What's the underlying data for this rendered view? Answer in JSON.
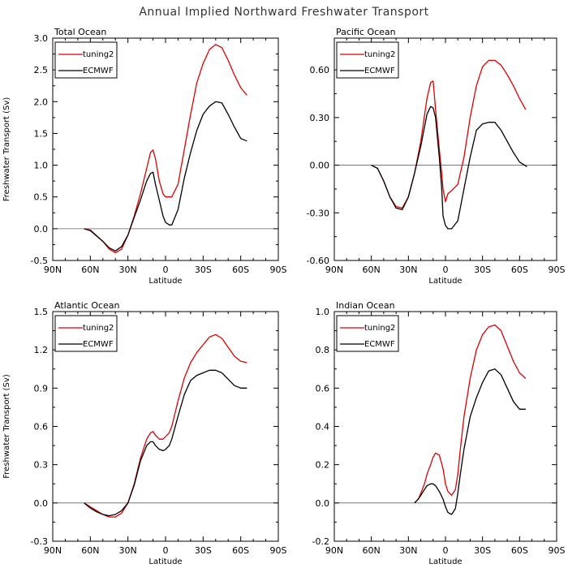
{
  "title": "Annual Implied Northward Freshwater Transport",
  "chart_data": [
    {
      "type": "line",
      "title": "Total Ocean",
      "xlabel": "Latitude",
      "ylabel": "Freshwater Transport (Sv)",
      "xlim": [
        -90,
        90
      ],
      "ylim": [
        -0.5,
        3.0
      ],
      "xticks": [
        -90,
        -60,
        -30,
        0,
        30,
        60,
        90
      ],
      "xtick_labels": [
        "90N",
        "60N",
        "30N",
        "0",
        "30S",
        "60S",
        "90S"
      ],
      "yticks": [
        -0.5,
        0.0,
        0.5,
        1.0,
        1.5,
        2.0,
        2.5,
        3.0
      ],
      "ytick_labels": [
        "-0.5",
        "0.0",
        "0.5",
        "1.0",
        "1.5",
        "2.0",
        "2.5",
        "3.0"
      ],
      "legend": [
        "tuning2",
        "ECMWF"
      ],
      "series": [
        {
          "name": "tuning2",
          "color": "#e00000",
          "x": [
            -65,
            -60,
            -50,
            -45,
            -40,
            -35,
            -30,
            -25,
            -20,
            -15,
            -12,
            -10,
            -8,
            -5,
            -2,
            0,
            3,
            5,
            10,
            15,
            20,
            25,
            30,
            35,
            40,
            45,
            50,
            55,
            60,
            65
          ],
          "y": [
            0.0,
            -0.02,
            -0.2,
            -0.32,
            -0.38,
            -0.32,
            -0.1,
            0.2,
            0.55,
            0.95,
            1.2,
            1.24,
            1.1,
            0.75,
            0.55,
            0.5,
            0.5,
            0.5,
            0.7,
            1.25,
            1.8,
            2.3,
            2.6,
            2.82,
            2.9,
            2.85,
            2.65,
            2.42,
            2.22,
            2.1
          ]
        },
        {
          "name": "ECMWF",
          "color": "#000000",
          "x": [
            -65,
            -60,
            -50,
            -45,
            -40,
            -35,
            -30,
            -25,
            -20,
            -15,
            -12,
            -10,
            -8,
            -5,
            -2,
            0,
            3,
            5,
            10,
            15,
            20,
            25,
            30,
            35,
            40,
            45,
            50,
            55,
            60,
            65
          ],
          "y": [
            0.0,
            -0.03,
            -0.2,
            -0.3,
            -0.35,
            -0.28,
            -0.1,
            0.18,
            0.45,
            0.75,
            0.87,
            0.89,
            0.7,
            0.45,
            0.2,
            0.1,
            0.06,
            0.06,
            0.3,
            0.8,
            1.2,
            1.55,
            1.8,
            1.93,
            2.0,
            1.98,
            1.8,
            1.6,
            1.42,
            1.38
          ]
        }
      ]
    },
    {
      "type": "line",
      "title": "Pacific Ocean",
      "xlabel": "Latitude",
      "ylabel": "",
      "xlim": [
        -90,
        90
      ],
      "ylim": [
        -0.6,
        0.8
      ],
      "xticks": [
        -90,
        -60,
        -30,
        0,
        30,
        60,
        90
      ],
      "xtick_labels": [
        "90N",
        "60N",
        "30N",
        "0",
        "30S",
        "60S",
        "90S"
      ],
      "yticks": [
        -0.6,
        -0.3,
        0.0,
        0.3,
        0.6
      ],
      "ytick_labels": [
        "-0.60",
        "-0.30",
        "0.00",
        "0.30",
        "0.60"
      ],
      "legend": [
        "tuning2",
        "ECMWF"
      ],
      "series": [
        {
          "name": "tuning2",
          "color": "#e00000",
          "x": [
            -60,
            -55,
            -50,
            -45,
            -40,
            -35,
            -30,
            -25,
            -20,
            -15,
            -12,
            -10,
            -8,
            -5,
            -3,
            -2,
            0,
            2,
            5,
            10,
            15,
            20,
            25,
            30,
            35,
            40,
            45,
            50,
            55,
            60,
            65
          ],
          "y": [
            0.0,
            -0.02,
            -0.1,
            -0.2,
            -0.26,
            -0.27,
            -0.2,
            -0.05,
            0.15,
            0.42,
            0.52,
            0.53,
            0.35,
            0.1,
            -0.05,
            -0.15,
            -0.23,
            -0.18,
            -0.16,
            -0.12,
            0.05,
            0.3,
            0.5,
            0.62,
            0.66,
            0.66,
            0.63,
            0.57,
            0.5,
            0.42,
            0.35
          ]
        },
        {
          "name": "ECMWF",
          "color": "#000000",
          "x": [
            -60,
            -55,
            -50,
            -45,
            -40,
            -35,
            -30,
            -25,
            -20,
            -15,
            -12,
            -10,
            -8,
            -5,
            -3,
            -2,
            0,
            2,
            5,
            10,
            15,
            20,
            25,
            30,
            35,
            40,
            45,
            50,
            55,
            60,
            64,
            66
          ],
          "y": [
            0.0,
            -0.02,
            -0.1,
            -0.2,
            -0.27,
            -0.28,
            -0.2,
            -0.05,
            0.12,
            0.32,
            0.37,
            0.36,
            0.3,
            0.05,
            -0.15,
            -0.32,
            -0.38,
            -0.4,
            -0.4,
            -0.35,
            -0.15,
            0.05,
            0.22,
            0.26,
            0.27,
            0.27,
            0.22,
            0.15,
            0.08,
            0.02,
            0.0,
            -0.01
          ]
        }
      ]
    },
    {
      "type": "line",
      "title": "Atlantic Ocean",
      "xlabel": "Latitude",
      "ylabel": "Freshwater Transport (Sv)",
      "xlim": [
        -90,
        90
      ],
      "ylim": [
        -0.3,
        1.5
      ],
      "xticks": [
        -90,
        -60,
        -30,
        0,
        30,
        60,
        90
      ],
      "xtick_labels": [
        "90N",
        "60N",
        "30N",
        "0",
        "30S",
        "60S",
        "90S"
      ],
      "yticks": [
        -0.3,
        0.0,
        0.3,
        0.6,
        0.9,
        1.2,
        1.5
      ],
      "ytick_labels": [
        "-0.3",
        "0.0",
        "0.3",
        "0.6",
        "0.9",
        "1.2",
        "1.5"
      ],
      "legend": [
        "tuning2",
        "ECMWF"
      ],
      "series": [
        {
          "name": "tuning2",
          "color": "#e00000",
          "x": [
            -65,
            -60,
            -55,
            -50,
            -45,
            -40,
            -35,
            -30,
            -25,
            -20,
            -15,
            -12,
            -10,
            -8,
            -5,
            -2,
            0,
            3,
            5,
            10,
            15,
            20,
            25,
            30,
            35,
            40,
            45,
            50,
            55,
            60,
            65
          ],
          "y": [
            0.0,
            -0.03,
            -0.06,
            -0.09,
            -0.11,
            -0.11,
            -0.08,
            0.0,
            0.15,
            0.35,
            0.5,
            0.55,
            0.56,
            0.53,
            0.5,
            0.5,
            0.52,
            0.55,
            0.6,
            0.8,
            0.98,
            1.1,
            1.18,
            1.24,
            1.3,
            1.32,
            1.29,
            1.22,
            1.15,
            1.11,
            1.1
          ]
        },
        {
          "name": "ECMWF",
          "color": "#000000",
          "x": [
            -65,
            -60,
            -55,
            -50,
            -45,
            -40,
            -35,
            -30,
            -25,
            -20,
            -15,
            -12,
            -10,
            -8,
            -5,
            -2,
            0,
            3,
            5,
            10,
            15,
            20,
            25,
            30,
            35,
            40,
            45,
            50,
            55,
            60,
            65
          ],
          "y": [
            0.0,
            -0.04,
            -0.07,
            -0.09,
            -0.1,
            -0.09,
            -0.06,
            0.0,
            0.14,
            0.33,
            0.45,
            0.48,
            0.48,
            0.45,
            0.42,
            0.41,
            0.42,
            0.45,
            0.5,
            0.68,
            0.85,
            0.96,
            1.0,
            1.02,
            1.04,
            1.04,
            1.02,
            0.97,
            0.92,
            0.9,
            0.9
          ]
        }
      ]
    },
    {
      "type": "line",
      "title": "Indian Ocean",
      "xlabel": "Latitude",
      "ylabel": "",
      "xlim": [
        -90,
        90
      ],
      "ylim": [
        -0.2,
        1.0
      ],
      "xticks": [
        -90,
        -60,
        -30,
        0,
        30,
        60,
        90
      ],
      "xtick_labels": [
        "90N",
        "60N",
        "30N",
        "0",
        "30S",
        "60S",
        "90S"
      ],
      "yticks": [
        -0.2,
        0.0,
        0.2,
        0.4,
        0.6,
        0.8,
        1.0
      ],
      "ytick_labels": [
        "-0.2",
        "0.0",
        "0.2",
        "0.4",
        "0.6",
        "0.8",
        "1.0"
      ],
      "legend": [
        "tuning2",
        "ECMWF"
      ],
      "series": [
        {
          "name": "tuning2",
          "color": "#e00000",
          "x": [
            -25,
            -22,
            -20,
            -17,
            -15,
            -12,
            -10,
            -8,
            -5,
            -2,
            0,
            2,
            5,
            8,
            10,
            12,
            15,
            20,
            25,
            30,
            35,
            40,
            45,
            50,
            55,
            60,
            65
          ],
          "y": [
            0.0,
            0.02,
            0.05,
            0.1,
            0.15,
            0.2,
            0.24,
            0.26,
            0.25,
            0.18,
            0.1,
            0.06,
            0.04,
            0.07,
            0.15,
            0.28,
            0.45,
            0.65,
            0.8,
            0.88,
            0.92,
            0.93,
            0.9,
            0.82,
            0.74,
            0.68,
            0.65
          ]
        },
        {
          "name": "ECMWF",
          "color": "#000000",
          "x": [
            -25,
            -22,
            -20,
            -17,
            -15,
            -12,
            -10,
            -8,
            -5,
            -2,
            0,
            2,
            5,
            8,
            10,
            12,
            15,
            20,
            25,
            30,
            35,
            40,
            45,
            50,
            55,
            60,
            65
          ],
          "y": [
            0.0,
            0.02,
            0.04,
            0.07,
            0.09,
            0.1,
            0.1,
            0.09,
            0.06,
            0.02,
            -0.02,
            -0.05,
            -0.06,
            -0.03,
            0.05,
            0.15,
            0.28,
            0.45,
            0.55,
            0.63,
            0.69,
            0.7,
            0.67,
            0.6,
            0.53,
            0.49,
            0.49
          ]
        }
      ]
    }
  ]
}
